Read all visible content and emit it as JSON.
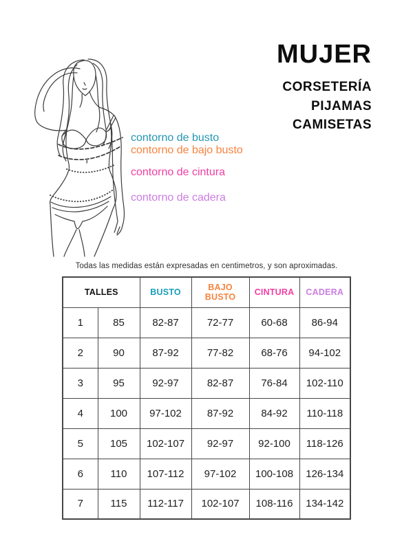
{
  "title": {
    "main": "MUJER",
    "subtitles": [
      "CORSETERÍA",
      "PIJAMAS",
      "CAMISETAS"
    ]
  },
  "figure": {
    "labels": [
      {
        "text": "contorno de busto",
        "color": "#2396b2"
      },
      {
        "text": "contorno de bajo busto",
        "color": "#f6833f"
      },
      {
        "text": "contorno de cintura",
        "color": "#f13fa4"
      },
      {
        "text": "contorno de cadera",
        "color": "#cb7de2"
      }
    ]
  },
  "measurement_colors": {
    "busto": "#2da5c0",
    "bajo_busto": "#f6833f",
    "cintura": "#f565b4",
    "cadera": "#cb7de2"
  },
  "note": "Todas las medidas están expresadas en centimetros, y son aproximadas.",
  "table": {
    "headers": [
      {
        "label": "TALLES",
        "color": "#111111"
      },
      {
        "label": "BUSTO",
        "color": "#189db8"
      },
      {
        "label": "BAJO BUSTO",
        "color": "#f6833f"
      },
      {
        "label": "CINTURA",
        "color": "#f13fa4"
      },
      {
        "label": "CADERA",
        "color": "#cb7de2"
      }
    ],
    "rows": [
      [
        "1",
        "85",
        "82-87",
        "72-77",
        "60-68",
        "86-94"
      ],
      [
        "2",
        "90",
        "87-92",
        "77-82",
        "68-76",
        "94-102"
      ],
      [
        "3",
        "95",
        "92-97",
        "82-87",
        "76-84",
        "102-110"
      ],
      [
        "4",
        "100",
        "97-102",
        "87-92",
        "84-92",
        "110-118"
      ],
      [
        "5",
        "105",
        "102-107",
        "92-97",
        "92-100",
        "118-126"
      ],
      [
        "6",
        "110",
        "107-112",
        "97-102",
        "100-108",
        "126-134"
      ],
      [
        "7",
        "115",
        "112-117",
        "102-107",
        "108-116",
        "134-142"
      ]
    ]
  }
}
